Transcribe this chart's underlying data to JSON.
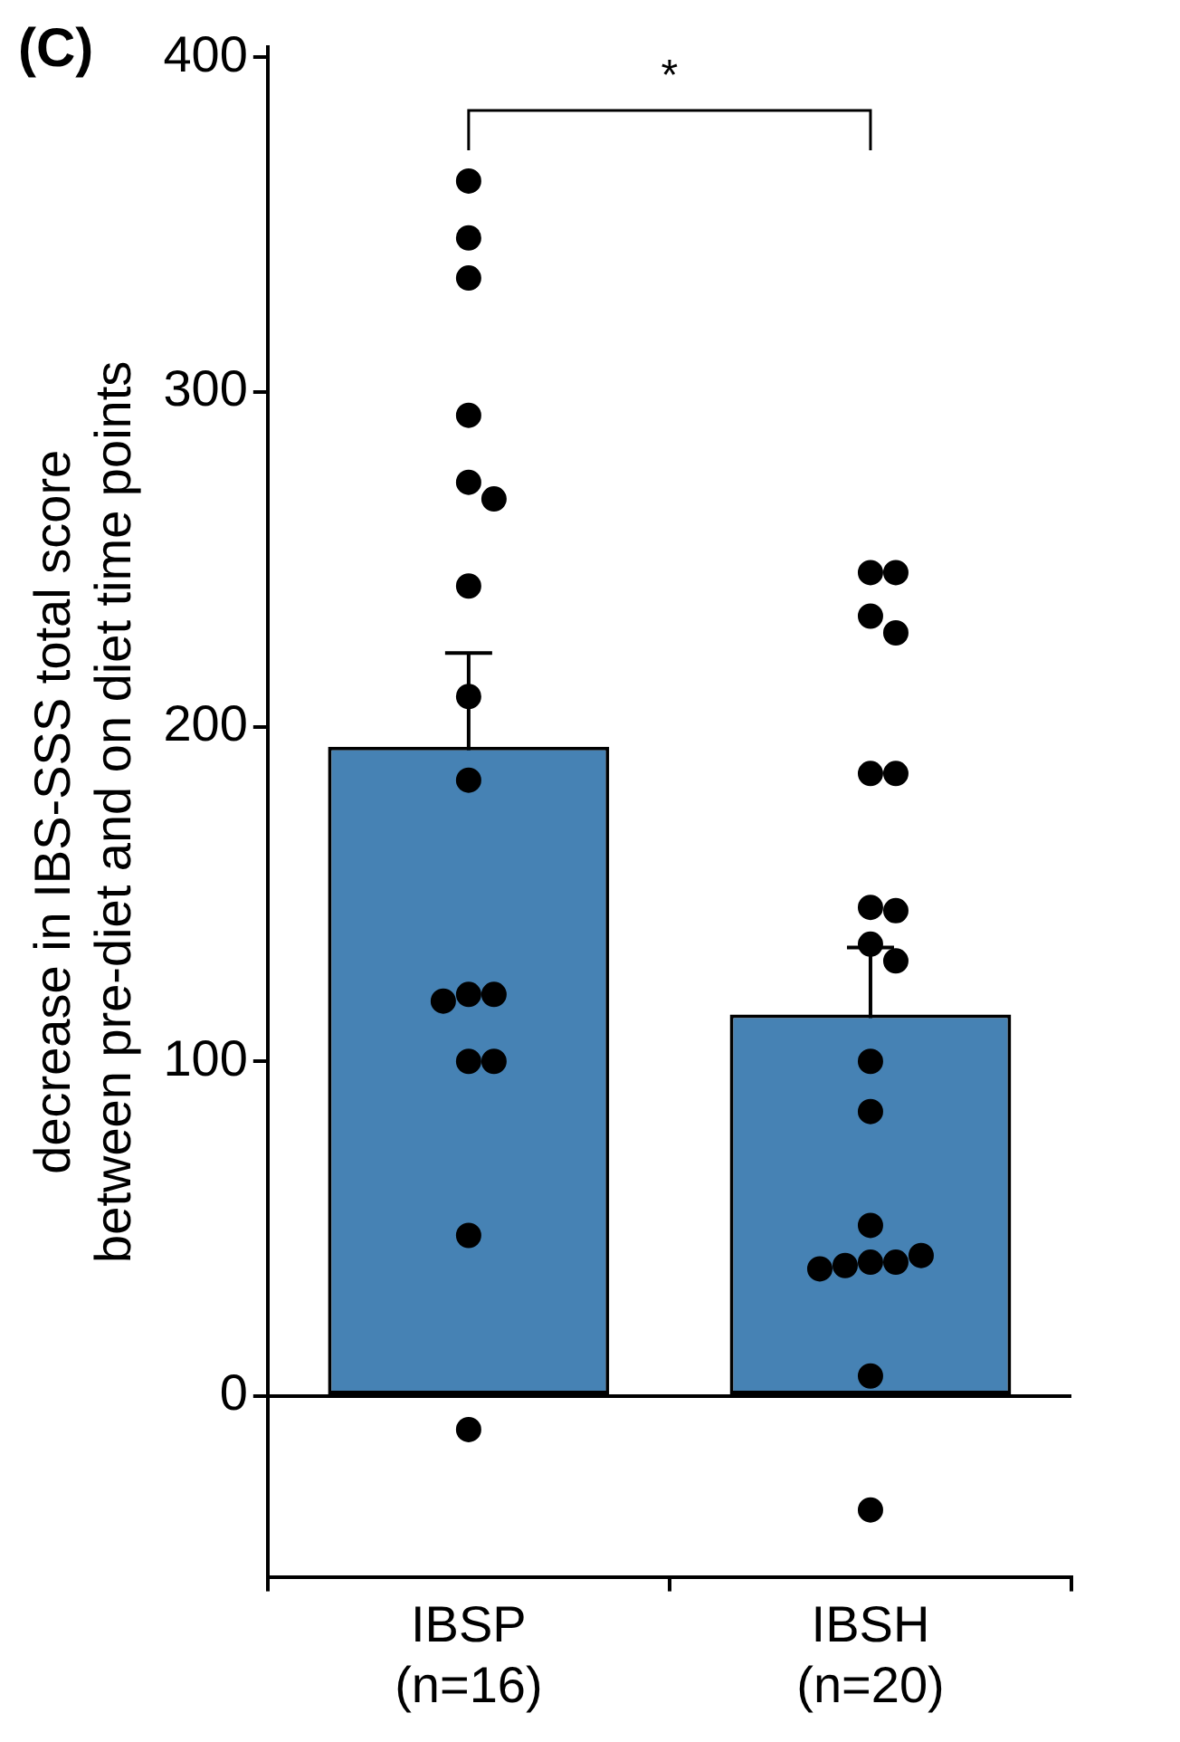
{
  "chart_data": {
    "type": "bar",
    "title": "(C)",
    "ylabel": "decrease in IBS-SSS total score\nbetween pre-diet and on diet time points",
    "categories": [
      "IBSP\n(n=16)",
      "IBSH\n(n=20)"
    ],
    "series": [
      {
        "color": "#4682b4",
        "values": [
          194,
          114
        ],
        "errors": [
          28,
          20
        ]
      },
      {
        "type": "scatter",
        "color": "#000000",
        "x": [
          "IBSP\n(n=16)",
          "IBSP\n(n=16)",
          "IBSP\n(n=16)",
          "IBSP\n(n=16)",
          "IBSP\n(n=16)",
          "IBSP\n(n=16)",
          "IBSP\n(n=16)",
          "IBSP\n(n=16)",
          "IBSP\n(n=16)",
          "IBSP\n(n=16)",
          "IBSP\n(n=16)",
          "IBSP\n(n=16)",
          "IBSP\n(n=16)",
          "IBSP\n(n=16)",
          "IBSP\n(n=16)",
          "IBSP\n(n=16)",
          "IBSH\n(n=20)",
          "IBSH\n(n=20)",
          "IBSH\n(n=20)",
          "IBSH\n(n=20)",
          "IBSH\n(n=20)",
          "IBSH\n(n=20)",
          "IBSH\n(n=20)",
          "IBSH\n(n=20)",
          "IBSH\n(n=20)",
          "IBSH\n(n=20)",
          "IBSH\n(n=20)",
          "IBSH\n(n=20)",
          "IBSH\n(n=20)",
          "IBSH\n(n=20)",
          "IBSH\n(n=20)",
          "IBSH\n(n=20)",
          "IBSH\n(n=20)",
          "IBSH\n(n=20)",
          "IBSH\n(n=20)",
          "IBSH\n(n=20)"
        ],
        "values": [
          363,
          346,
          334,
          293,
          273,
          268,
          242,
          209,
          184,
          120,
          120,
          118,
          100,
          100,
          48,
          -10,
          246,
          246,
          233,
          228,
          186,
          186,
          146,
          145,
          135,
          130,
          100,
          85,
          51,
          40,
          40,
          39,
          42,
          38,
          6,
          -34
        ]
      }
    ],
    "ylim": [
      -54,
      403
    ],
    "yticks": [
      0,
      100,
      200,
      300,
      400
    ],
    "grid": false,
    "legend": false,
    "marker": "circle",
    "ref_lines": [
      {
        "axis": "y",
        "value": 0
      }
    ],
    "annotations": [
      "*"
    ]
  }
}
